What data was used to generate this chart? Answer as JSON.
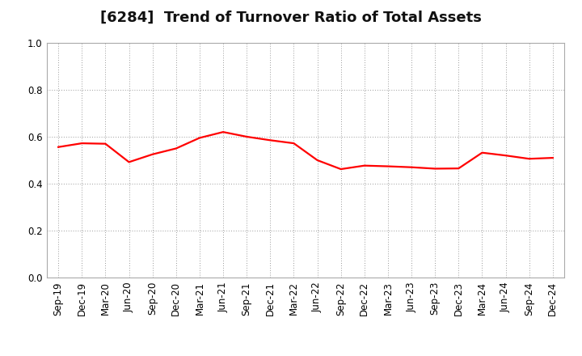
{
  "title": "[6284]  Trend of Turnover Ratio of Total Assets",
  "x_labels": [
    "Sep-19",
    "Dec-19",
    "Mar-20",
    "Jun-20",
    "Sep-20",
    "Dec-20",
    "Mar-21",
    "Jun-21",
    "Sep-21",
    "Dec-21",
    "Mar-22",
    "Jun-22",
    "Sep-22",
    "Dec-22",
    "Mar-23",
    "Jun-23",
    "Sep-23",
    "Dec-23",
    "Mar-24",
    "Jun-24",
    "Sep-24",
    "Dec-24"
  ],
  "y_values": [
    0.556,
    0.572,
    0.57,
    0.492,
    0.525,
    0.55,
    0.595,
    0.62,
    0.6,
    0.585,
    0.572,
    0.5,
    0.462,
    0.477,
    0.474,
    0.47,
    0.464,
    0.465,
    0.532,
    0.52,
    0.506,
    0.51
  ],
  "ylim": [
    0.0,
    1.0
  ],
  "yticks": [
    0.0,
    0.2,
    0.4,
    0.6,
    0.8,
    1.0
  ],
  "line_color": "#ff0000",
  "line_width": 1.6,
  "bg_color": "#ffffff",
  "plot_bg_color": "#ffffff",
  "grid_color": "#999999",
  "title_fontsize": 13,
  "tick_fontsize": 8.5
}
